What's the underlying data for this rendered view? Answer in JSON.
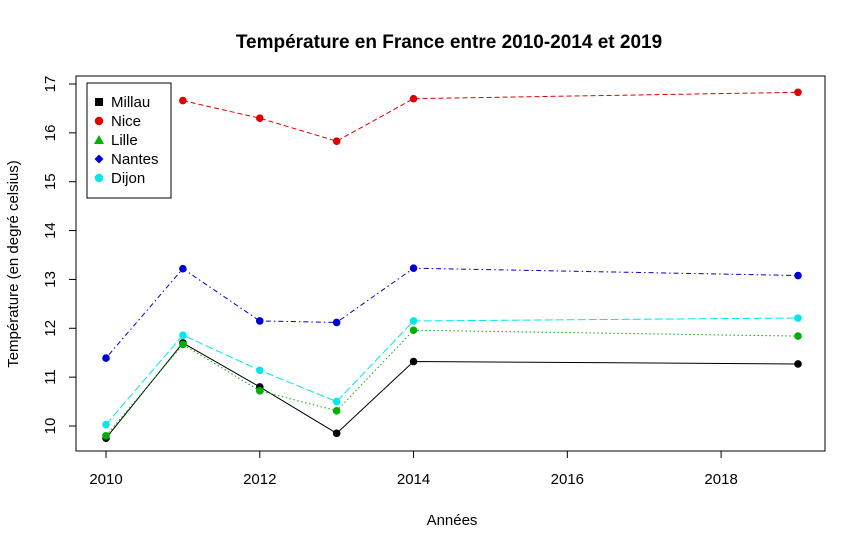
{
  "chart_data": {
    "type": "line",
    "title": "Température en France entre 2010-2014 et 2019",
    "xlabel": "Années",
    "ylabel": "Température (en degré celsius)",
    "xlim": [
      2010,
      2019
    ],
    "ylim": [
      9.5,
      17
    ],
    "x_ticks": [
      "2010",
      "2012",
      "2014",
      "2016",
      "2018"
    ],
    "y_ticks": [
      "10",
      "11",
      "12",
      "13",
      "14",
      "15",
      "16",
      "17"
    ],
    "x": [
      2010,
      2011,
      2012,
      2013,
      2014,
      2019
    ],
    "legend_position": "top-left",
    "series": [
      {
        "name": "Millau",
        "color": "#000000",
        "marker": "square",
        "line": "solid",
        "values": [
          9.75,
          11.7,
          10.8,
          9.85,
          11.32,
          11.27
        ]
      },
      {
        "name": "Nice",
        "color": "#e00000",
        "marker": "circle",
        "line": "dashed",
        "values": [
          null,
          16.66,
          16.3,
          15.83,
          16.7,
          16.83
        ]
      },
      {
        "name": "Lille",
        "color": "#00b000",
        "marker": "triangle",
        "line": "dotted",
        "values": [
          9.8,
          11.67,
          10.72,
          10.31,
          11.96,
          11.84
        ]
      },
      {
        "name": "Nantes",
        "color": "#0000d0",
        "marker": "diamond",
        "line": "dotdash",
        "values": [
          11.39,
          13.22,
          12.15,
          12.12,
          13.23,
          13.08
        ]
      },
      {
        "name": "Dijon",
        "color": "#00e8e8",
        "marker": "circle",
        "line": "longdash",
        "values": [
          10.03,
          11.86,
          11.14,
          10.5,
          12.15,
          12.21
        ]
      }
    ]
  }
}
